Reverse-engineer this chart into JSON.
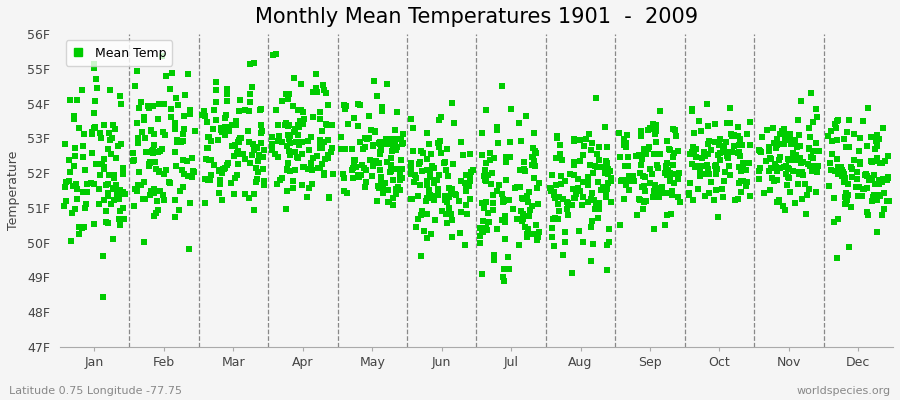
{
  "title": "Monthly Mean Temperatures 1901  -  2009",
  "ylabel": "Temperature",
  "xlabel_labels": [
    "Jan",
    "Feb",
    "Mar",
    "Apr",
    "May",
    "Jun",
    "Jul",
    "Aug",
    "Sep",
    "Oct",
    "Nov",
    "Dec"
  ],
  "coord_label": "Latitude 0.75 Longitude -77.75",
  "watermark": "worldspecies.org",
  "ylim": [
    47,
    56
  ],
  "yticks": [
    47,
    48,
    49,
    50,
    51,
    52,
    53,
    54,
    55,
    56
  ],
  "ytick_labels": [
    "47F",
    "48F",
    "49F",
    "50F",
    "51F",
    "52F",
    "53F",
    "54F",
    "55F",
    "56F"
  ],
  "dot_color": "#00cc00",
  "background_color": "#f5f5f5",
  "n_years": 109,
  "monthly_means": [
    52.0,
    52.5,
    52.7,
    52.9,
    52.6,
    51.8,
    51.3,
    51.5,
    52.1,
    52.3,
    52.4,
    52.1
  ],
  "monthly_stds": [
    1.2,
    1.1,
    0.95,
    0.95,
    0.85,
    0.9,
    0.95,
    0.9,
    0.7,
    0.75,
    0.75,
    0.8
  ],
  "title_fontsize": 15,
  "axis_label_fontsize": 9,
  "tick_label_fontsize": 9,
  "legend_fontsize": 9,
  "marker_size": 15
}
